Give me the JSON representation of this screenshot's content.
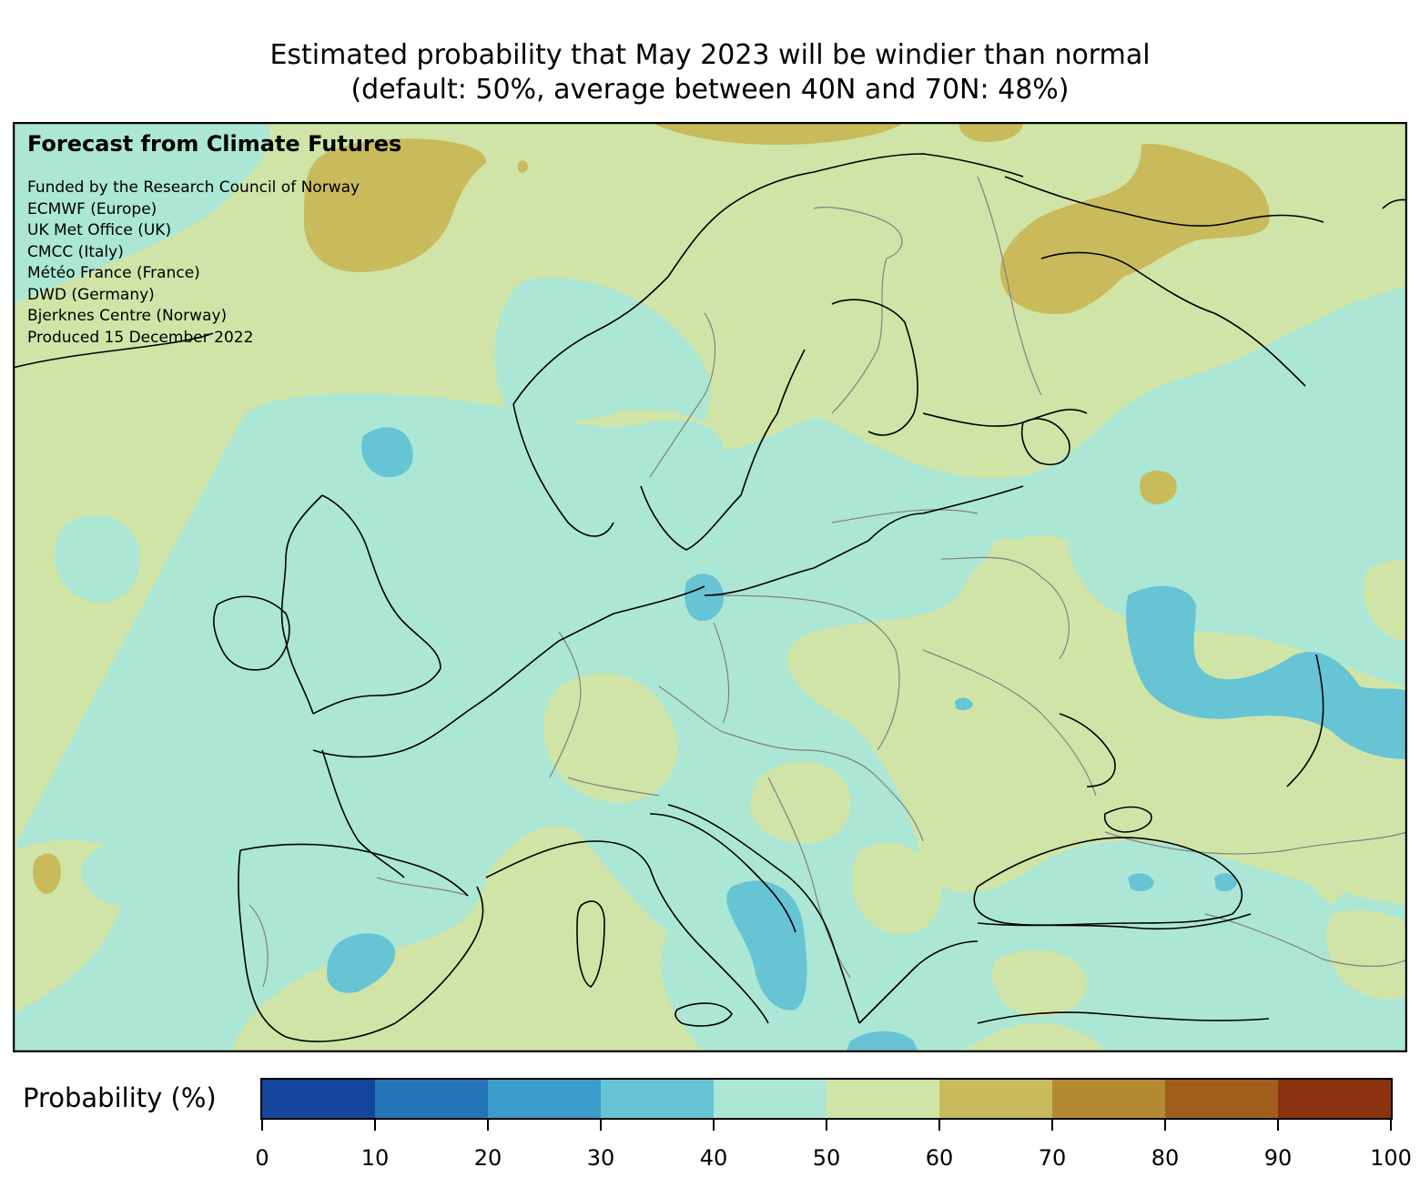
{
  "title": {
    "line1": "Estimated probability that May 2023 will be windier than normal",
    "line2": "(default: 50%, average between 40N and 70N: 48%)"
  },
  "credits": {
    "heading": "Forecast from Climate Futures",
    "lines": [
      "Funded by the Research Council of Norway",
      "ECMWF (Europe)",
      "UK Met Office (UK)",
      "CMCC (Italy)",
      "Météo France (France)",
      "DWD (Germany)",
      "Bjerknes Centre (Norway)",
      "Produced 15 December 2022"
    ]
  },
  "colorbar": {
    "label": "Probability (%)",
    "ticks": [
      "0",
      "10",
      "20",
      "30",
      "40",
      "50",
      "60",
      "70",
      "80",
      "90",
      "100"
    ],
    "bins": [
      {
        "range": "0-10",
        "color": "#1446a0"
      },
      {
        "range": "10-20",
        "color": "#2674b8"
      },
      {
        "range": "20-30",
        "color": "#3a9dca"
      },
      {
        "range": "30-40",
        "color": "#66c4d4"
      },
      {
        "range": "40-50",
        "color": "#abe7d4"
      },
      {
        "range": "50-60",
        "color": "#d0e4a8"
      },
      {
        "range": "60-70",
        "color": "#c9ba5c"
      },
      {
        "range": "70-80",
        "color": "#b38a32"
      },
      {
        "range": "80-90",
        "color": "#a05e1c"
      },
      {
        "range": "90-100",
        "color": "#8a330e"
      }
    ]
  },
  "map": {
    "region": "Europe",
    "field": "probability of windier than normal (%)",
    "colors": {
      "p30_40": "#66c4d4",
      "p40_50": "#abe7d4",
      "p50_60": "#d0e4a8",
      "p60_70": "#c9ba5c",
      "coastline": "#000000",
      "borders": "#808080"
    }
  }
}
